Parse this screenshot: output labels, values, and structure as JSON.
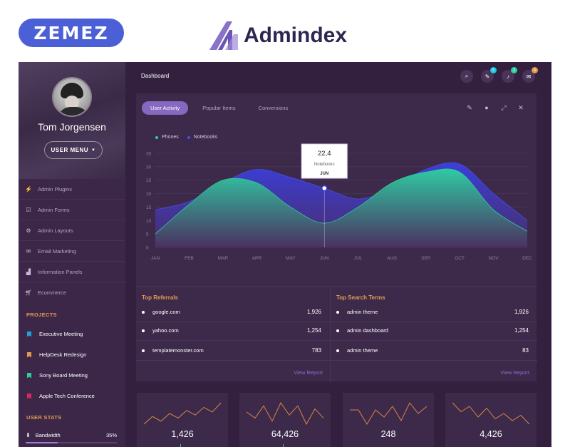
{
  "brand": {
    "zemez": "ZEMEZ",
    "product": "Admindex",
    "colors": {
      "zemez_bg": "#4b5fd6",
      "accent": "#8768c0",
      "orange": "#e39a4e",
      "teal": "#2ecf9d",
      "blue": "#3a3dd6"
    }
  },
  "sidebar": {
    "profile": {
      "name": "Tom Jorgensen",
      "menu_label": "USER MENU"
    },
    "items": [
      {
        "label": "Admin Plugins",
        "icon": "bolt-icon"
      },
      {
        "label": "Admin Forms",
        "icon": "check-square-icon"
      },
      {
        "label": "Admin Layouts",
        "icon": "gear-icon"
      },
      {
        "label": "Email Marketing",
        "icon": "envelope-icon"
      },
      {
        "label": "Information Panels",
        "icon": "bar-chart-icon"
      },
      {
        "label": "Ecommerce",
        "icon": "cart-icon"
      }
    ],
    "projects_title": "PROJECTS",
    "projects": [
      {
        "label": "Executive Meeting",
        "color": "#1fa3e0"
      },
      {
        "label": "HelpDesk Redesign",
        "color": "#e39a4e"
      },
      {
        "label": "Sony Board Meeting",
        "color": "#2ecf9d"
      },
      {
        "label": "Apple Tech Conference",
        "color": "#e0245e"
      }
    ],
    "user_stats_title": "USER STATS",
    "user_stats": {
      "label": "Bandwidth",
      "value": "35%",
      "fraction": 0.35
    }
  },
  "topbar": {
    "title": "Dashboard",
    "badges": {
      "wand": "5",
      "bell": "3",
      "chat": "4"
    }
  },
  "card": {
    "tabs": [
      "User Activity",
      "Popular Items",
      "Conversions"
    ],
    "active_tab": 0
  },
  "chart_data": {
    "type": "area",
    "x": [
      "JAN",
      "FEB",
      "MAR",
      "APR",
      "MAY",
      "JUN",
      "JUL",
      "AUG",
      "SEP",
      "OCT",
      "NOV",
      "DEC"
    ],
    "series": [
      {
        "name": "Phones",
        "color": "#2ecf9d",
        "values": [
          5,
          16,
          25,
          24,
          15,
          9,
          15,
          24,
          28,
          28,
          14,
          6
        ]
      },
      {
        "name": "Notebooks",
        "color": "#3a3dd6",
        "values": [
          14,
          17,
          24,
          29,
          26,
          22,
          18,
          22,
          29,
          31,
          20,
          10
        ]
      }
    ],
    "ylim": [
      0,
      35
    ],
    "yticks": [
      0,
      5,
      10,
      15,
      20,
      25,
      30,
      35
    ],
    "grid": true,
    "legend": "top-left",
    "tooltip": {
      "value": "22,4",
      "series": "Notebooks",
      "month": "JUN"
    }
  },
  "referrals": {
    "title": "Top Referrals",
    "rows": [
      {
        "name": "google.com",
        "value": "1,926"
      },
      {
        "name": "yahoo.com",
        "value": "1,254"
      },
      {
        "name": "templatemonster.com",
        "value": "783"
      }
    ],
    "view": "View Report"
  },
  "search_terms": {
    "title": "Top Search Terms",
    "rows": [
      {
        "name": "admin theme",
        "value": "1,926"
      },
      {
        "name": "admin dashboard",
        "value": "1,254"
      },
      {
        "name": "admin theme",
        "value": "83"
      }
    ],
    "view": "View Report"
  },
  "mini_stats": [
    {
      "value": "1,426",
      "trend": [
        4,
        9,
        6,
        11,
        8,
        13,
        10,
        15,
        12,
        18
      ]
    },
    {
      "value": "64,426",
      "trend": [
        10,
        8,
        12,
        7,
        13,
        9,
        12,
        6,
        11,
        8
      ]
    },
    {
      "value": "248",
      "trend": [
        14,
        14,
        10,
        14,
        12,
        15,
        11,
        16,
        13,
        15
      ]
    },
    {
      "value": "4,426",
      "trend": [
        16,
        11,
        14,
        8,
        13,
        7,
        10,
        6,
        9,
        4
      ]
    }
  ]
}
